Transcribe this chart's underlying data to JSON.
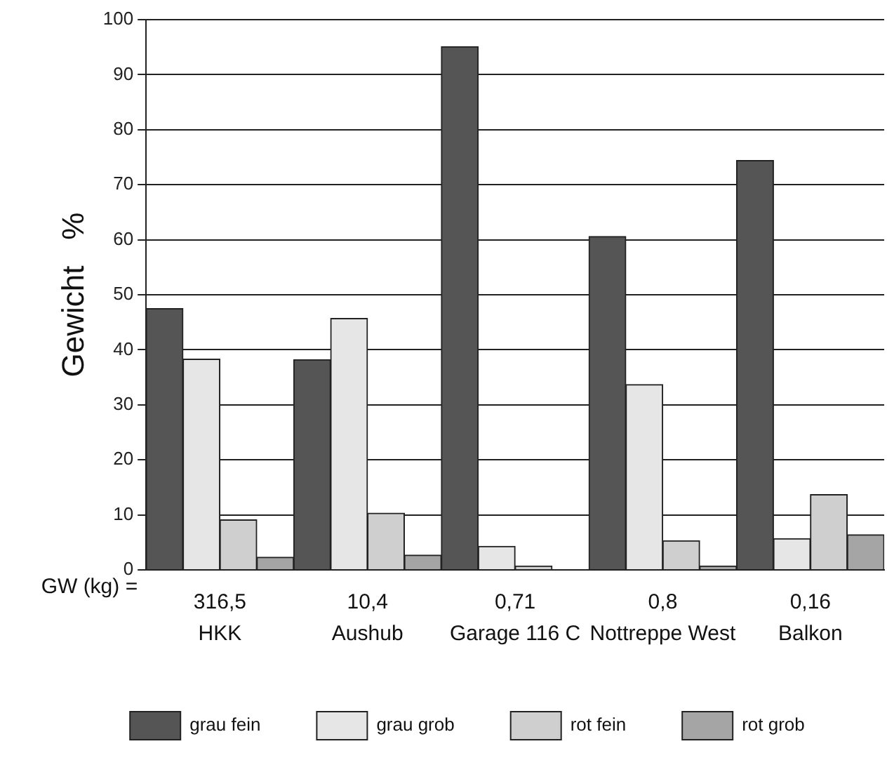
{
  "chart_data": {
    "type": "bar",
    "ylabel": "Gewicht   %",
    "categories": [
      "316,5\nHKK",
      "10,4\nAushub",
      "0,71\nGarage 116 C",
      "0,8\nNottreppe West",
      "0,16\nBalkon"
    ],
    "series": [
      {
        "name": "grau fein",
        "color": "#555555",
        "values": [
          47.5,
          38.2,
          95.1,
          60.6,
          74.4
        ]
      },
      {
        "name": "grau grob",
        "color": "#e6e6e6",
        "values": [
          38.3,
          45.7,
          4.3,
          33.7,
          5.7
        ]
      },
      {
        "name": "rot fein",
        "color": "#cfcfcf",
        "values": [
          9.1,
          10.3,
          0.7,
          5.3,
          13.7
        ]
      },
      {
        "name": "rot grob",
        "color": "#a5a5a5",
        "values": [
          2.3,
          2.7,
          null,
          0.7,
          6.4
        ]
      }
    ],
    "ylim": [
      0,
      100
    ],
    "yticks": [
      0,
      10,
      20,
      30,
      40,
      50,
      60,
      70,
      80,
      90,
      100
    ],
    "grid": "y",
    "legend": "bottom",
    "annotations": [
      "GW (kg) ="
    ]
  }
}
